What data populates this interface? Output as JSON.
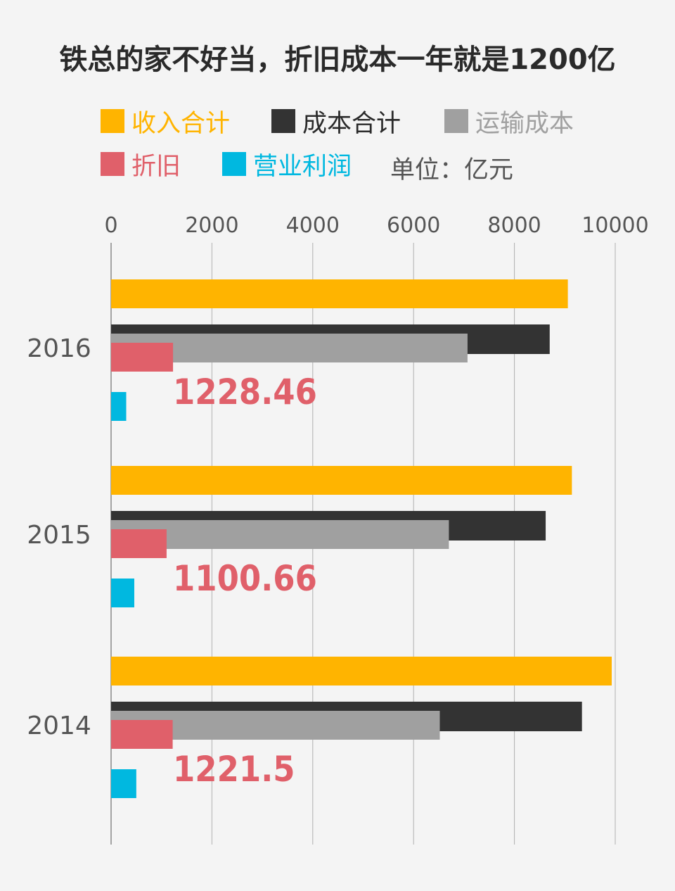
{
  "title": "铁总的家不好当，折旧成本一年就是1200亿",
  "unit_note": "单位：亿元",
  "colors": {
    "revenue": "#ffb400",
    "total_cost": "#333333",
    "transport_cost": "#a0a0a0",
    "depreciation": "#e0606a",
    "operating_profit": "#00b8e0"
  },
  "chart_data": {
    "type": "bar",
    "orientation": "horizontal",
    "categories": [
      "2016",
      "2015",
      "2014"
    ],
    "series": [
      {
        "name": "收入合计",
        "color": "#ffb400",
        "values": [
          9060,
          9140,
          9930
        ]
      },
      {
        "name": "成本合计",
        "color": "#333333",
        "values": [
          8700,
          8620,
          9340
        ]
      },
      {
        "name": "运输成本",
        "color": "#a0a0a0",
        "values": [
          7070,
          6700,
          6520
        ]
      },
      {
        "name": "折旧",
        "color": "#e0606a",
        "values": [
          1228.46,
          1100.66,
          1221.5
        ]
      },
      {
        "name": "营业利润",
        "color": "#00b8e0",
        "values": [
          300,
          460,
          500
        ]
      }
    ],
    "data_labels": [
      "1228.46",
      "1100.66",
      "1221.5"
    ],
    "x_ticks": [
      "0",
      "2000",
      "4000",
      "6000",
      "8000",
      "10000"
    ],
    "xlim": [
      0,
      10000
    ],
    "grid": true,
    "legend_position": "top"
  }
}
